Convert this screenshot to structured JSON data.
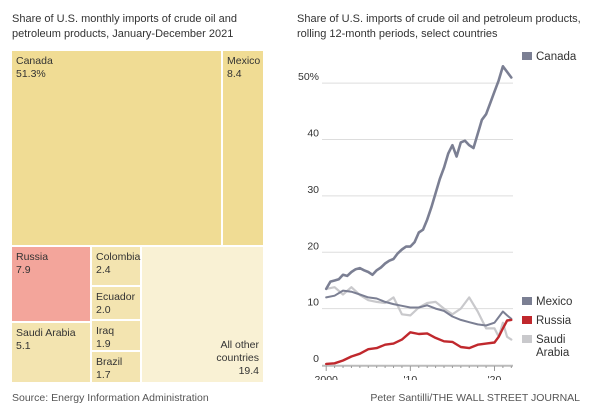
{
  "treemap": {
    "title": "Share of U.S. monthly imports of crude oil and petroleum products, January-December 2021",
    "tiles": [
      {
        "name": "Canada",
        "value_label": "51.3%",
        "value": 51.3,
        "color": "#f0dc94",
        "align": "left-top"
      },
      {
        "name": "Mexico",
        "value_label": "8.4",
        "value": 8.4,
        "color": "#f0dc94",
        "align": "left-top"
      },
      {
        "name": "Russia",
        "value_label": "7.9",
        "value": 7.9,
        "color": "#f3a59b",
        "align": "left-top"
      },
      {
        "name": "Saudi Arabia",
        "value_label": "5.1",
        "value": 5.1,
        "color": "#f3e4b0",
        "align": "left-top"
      },
      {
        "name": "Colombia",
        "value_label": "2.4",
        "value": 2.4,
        "color": "#f3e4b0",
        "align": "left-top"
      },
      {
        "name": "Ecuador",
        "value_label": "2.0",
        "value": 2.0,
        "color": "#f3e4b0",
        "align": "left-top"
      },
      {
        "name": "Iraq",
        "value_label": "1.9",
        "value": 1.9,
        "color": "#f3e4b0",
        "align": "left-top"
      },
      {
        "name": "Brazil",
        "value_label": "1.7",
        "value": 1.7,
        "color": "#f3e4b0",
        "align": "left-top"
      },
      {
        "name": "All other countries",
        "value_label": "19.4",
        "value": 19.4,
        "color": "#f9f1d4",
        "align": "right-bottom"
      }
    ]
  },
  "chart_data": [
    {
      "type": "treemap",
      "title": "Share of U.S. monthly imports of crude oil and petroleum products, January-December 2021",
      "categories": [
        "Canada",
        "Mexico",
        "Russia",
        "Saudi Arabia",
        "Colombia",
        "Ecuador",
        "Iraq",
        "Brazil",
        "All other countries"
      ],
      "values": [
        51.3,
        8.4,
        7.9,
        5.1,
        2.4,
        2.0,
        1.9,
        1.7,
        19.4
      ]
    },
    {
      "type": "line",
      "title": "Share of U.S. imports of crude oil and petroleum products, rolling 12-month periods, select countries",
      "xlabel": "",
      "ylabel": "",
      "xlim": [
        1999.5,
        2022.2
      ],
      "ylim": [
        0,
        55
      ],
      "y_ticks": [
        0,
        10,
        20,
        30,
        40,
        50
      ],
      "y_tick_labels": [
        "0",
        "10",
        "20",
        "30",
        "40",
        "50%"
      ],
      "x_ticks": [
        2000,
        2010,
        2020
      ],
      "x_tick_labels": [
        "2000",
        "'10",
        "'20"
      ],
      "grid": true,
      "series": [
        {
          "name": "Canada",
          "color": "#7b7f93",
          "width": 2.6,
          "x": [
            2000,
            2000.5,
            2001,
            2001.5,
            2002,
            2002.5,
            2003,
            2003.5,
            2004,
            2004.5,
            2005,
            2005.5,
            2006,
            2006.5,
            2007,
            2007.5,
            2008,
            2008.5,
            2009,
            2009.5,
            2010,
            2010.5,
            2011,
            2011.5,
            2012,
            2012.5,
            2013,
            2013.5,
            2014,
            2014.5,
            2015,
            2015.5,
            2016,
            2016.5,
            2017,
            2017.5,
            2018,
            2018.5,
            2019,
            2019.5,
            2020,
            2020.5,
            2021,
            2021.5,
            2022
          ],
          "y": [
            13.5,
            14.8,
            15.0,
            15.2,
            16.0,
            15.8,
            16.5,
            17.0,
            17.2,
            16.8,
            16.5,
            16.0,
            16.8,
            17.3,
            18.0,
            18.5,
            18.8,
            19.8,
            20.5,
            21.0,
            21.0,
            21.8,
            23.5,
            24.0,
            25.8,
            28.0,
            30.5,
            33.0,
            35.0,
            37.5,
            39.0,
            37.0,
            39.5,
            39.8,
            39.0,
            38.5,
            41.0,
            43.5,
            44.5,
            46.5,
            48.5,
            50.5,
            53.0,
            52.0,
            51.0
          ]
        },
        {
          "name": "Mexico",
          "color": "#7b7f93",
          "width": 2.0,
          "x": [
            2000,
            2001,
            2002,
            2003,
            2004,
            2005,
            2006,
            2007,
            2008,
            2009,
            2010,
            2011,
            2012,
            2013,
            2014,
            2015,
            2016,
            2017,
            2018,
            2019,
            2020,
            2020.5,
            2021,
            2021.5,
            2022
          ],
          "y": [
            12.0,
            12.3,
            13.2,
            13.0,
            12.5,
            12.0,
            11.8,
            11.2,
            10.8,
            10.5,
            10.2,
            10.2,
            10.6,
            10.0,
            9.6,
            8.6,
            8.0,
            7.6,
            7.2,
            7.0,
            7.5,
            8.5,
            9.5,
            8.8,
            8.2
          ]
        },
        {
          "name": "Russia",
          "color": "#c0282d",
          "width": 2.4,
          "x": [
            2000,
            2001,
            2002,
            2003,
            2004,
            2005,
            2006,
            2007,
            2008,
            2009,
            2010,
            2011,
            2012,
            2013,
            2014,
            2015,
            2016,
            2017,
            2018,
            2019,
            2020,
            2020.5,
            2021,
            2021.5,
            2022
          ],
          "y": [
            0.2,
            0.3,
            0.8,
            1.5,
            2.0,
            2.8,
            3.0,
            3.6,
            3.8,
            4.5,
            5.8,
            5.5,
            5.6,
            4.8,
            4.2,
            4.1,
            3.2,
            3.0,
            3.6,
            3.8,
            4.0,
            5.0,
            6.5,
            7.9,
            8.0
          ]
        },
        {
          "name": "Saudi Arabia",
          "color": "#c9c9cc",
          "width": 2.2,
          "x": [
            2000,
            2001,
            2002,
            2003,
            2004,
            2005,
            2006,
            2007,
            2008,
            2009,
            2010,
            2011,
            2012,
            2013,
            2014,
            2015,
            2016,
            2017,
            2018,
            2019,
            2020,
            2020.5,
            2021,
            2021.5,
            2022
          ],
          "y": [
            13.5,
            13.8,
            12.5,
            13.8,
            12.4,
            11.5,
            11.2,
            11.0,
            12.0,
            9.0,
            8.8,
            10.2,
            11.0,
            11.2,
            10.0,
            9.0,
            10.0,
            12.0,
            9.5,
            6.5,
            6.5,
            5.0,
            7.5,
            5.0,
            4.5
          ]
        }
      ]
    }
  ],
  "line_chart": {
    "title": "Share of U.S. imports of crude oil and petroleum products, rolling 12-month periods, select countries",
    "legend_labels": {
      "canada": "Canada",
      "mexico": "Mexico",
      "russia": "Russia",
      "saudi_line1": "Saudi",
      "saudi_line2": "Arabia"
    }
  },
  "footer": {
    "source": "Source: Energy Information Administration",
    "credit": "Peter Santilli/THE WALL STREET JOURNAL"
  },
  "colors": {
    "grid": "#dddddd",
    "axis": "#999999",
    "text": "#333333"
  }
}
